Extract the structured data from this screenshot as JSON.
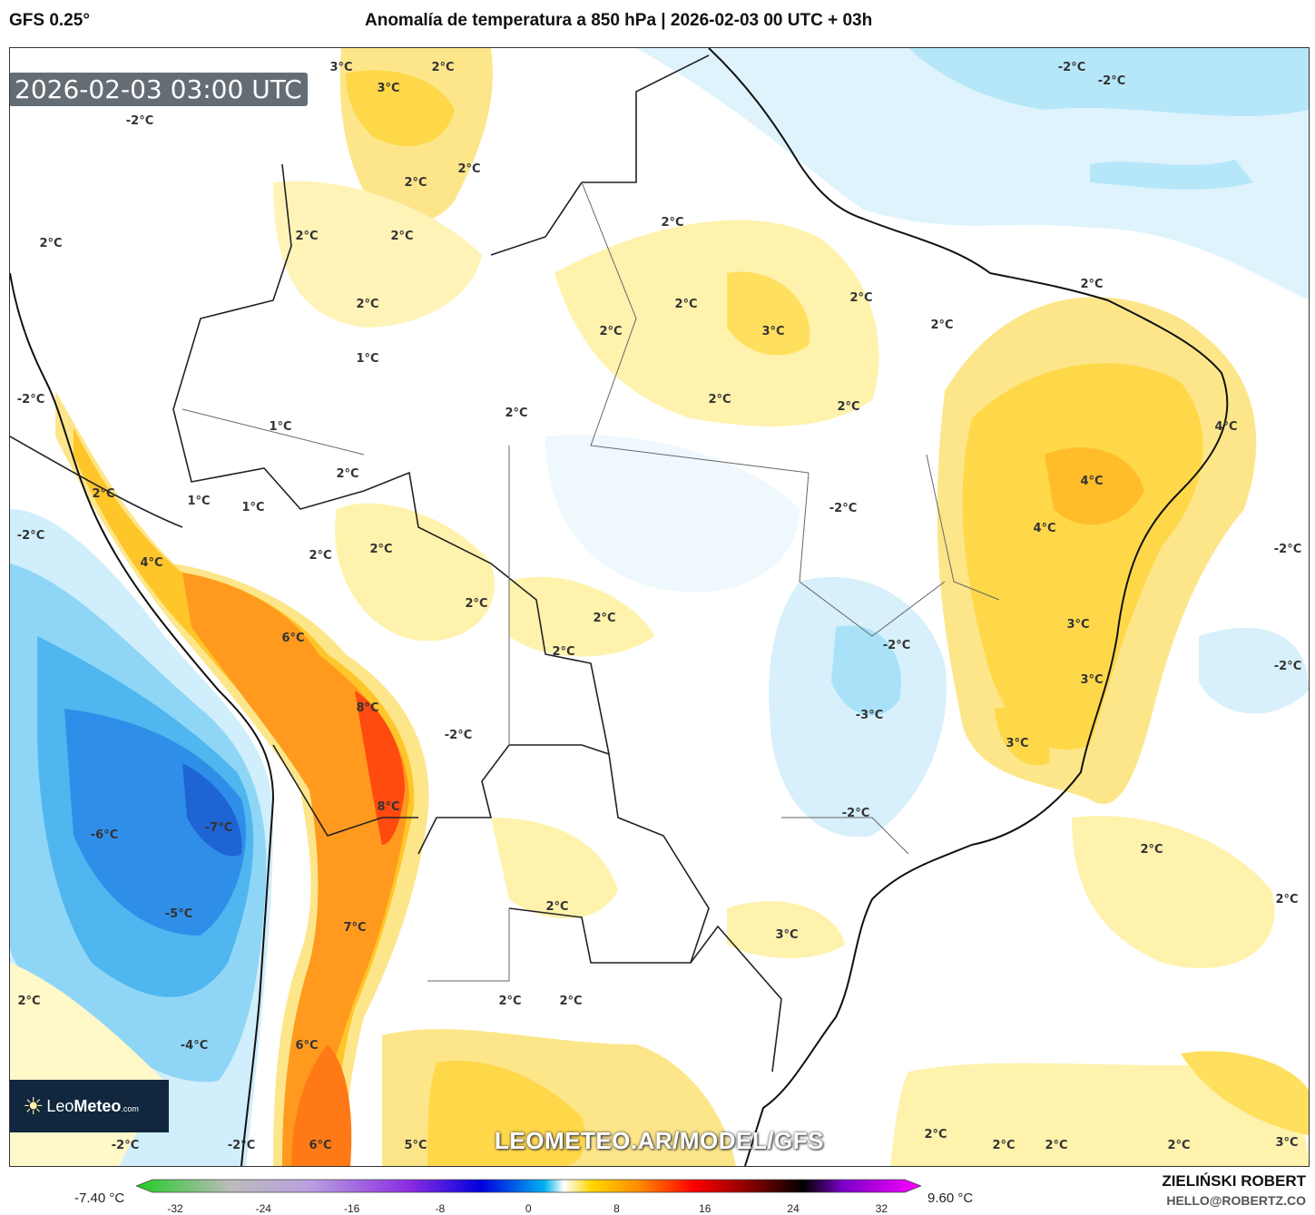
{
  "header": {
    "model": "GFS 0.25°",
    "title": "Anomalía de temperatura a 850 hPa | 2026-02-03 00 UTC + 03h"
  },
  "map": {
    "valid_time": "2026-02-03 03:00 UTC",
    "watermark_url": "LEOMETEO.AR/MODEL/GFS",
    "logo": {
      "name": "LeoMeteo",
      "prefix": "Leo",
      "suffix": "Meteo",
      "tld": ".com"
    },
    "contour_labels": [
      "3°C",
      "2°C",
      "3°C",
      "-2°C",
      "2°C",
      "2°C",
      "2°C",
      "2°C",
      "2°C",
      "2°C",
      "2°C",
      "2°C",
      "2°C",
      "2°C",
      "2°C",
      "3°C",
      "2°C",
      "1°C",
      "2°C",
      "-2°C",
      "2°C",
      "2°C",
      "1°C",
      "4°C",
      "2°C",
      "4°C",
      "2°C",
      "1°C",
      "1°C",
      "-2°C",
      "-2°C",
      "4°C",
      "2°C",
      "2°C",
      "-2°C",
      "4°C",
      "2°C",
      "2°C",
      "3°C",
      "6°C",
      "-2°C",
      "2°C",
      "-2°C",
      "3°C",
      "8°C",
      "-3°C",
      "-2°C",
      "3°C",
      "8°C",
      "-2°C",
      "-6°C",
      "-7°C",
      "2°C",
      "2°C",
      "-5°C",
      "2°C",
      "7°C",
      "3°C",
      "2°C",
      "2°C",
      "2°C",
      "-4°C",
      "6°C",
      "2°C",
      "-2°C",
      "-2°C",
      "6°C",
      "5°C",
      "2°C",
      "2°C",
      "2°C",
      "3°C",
      "-2°C",
      "-2°C"
    ]
  },
  "colorbar": {
    "min_label": "-7.40 °C",
    "max_label": "9.60 °C",
    "ticks": [
      "-32",
      "-24",
      "-16",
      "-8",
      "0",
      "8",
      "16",
      "24",
      "32"
    ],
    "range": [
      -32,
      32
    ],
    "colors": [
      "#22cc22",
      "#bbbbbb",
      "#b9a0e0",
      "#8a2be2",
      "#0000dd",
      "#00b0f0",
      "#ffffff",
      "#ffd700",
      "#ff8c00",
      "#ff0000",
      "#8b0000",
      "#000000",
      "#7b00c8",
      "#ff00ff"
    ]
  },
  "credits": {
    "author": "ZIELIŃSKI ROBERT",
    "email": "HELLO@ROBERTZ.CO"
  }
}
